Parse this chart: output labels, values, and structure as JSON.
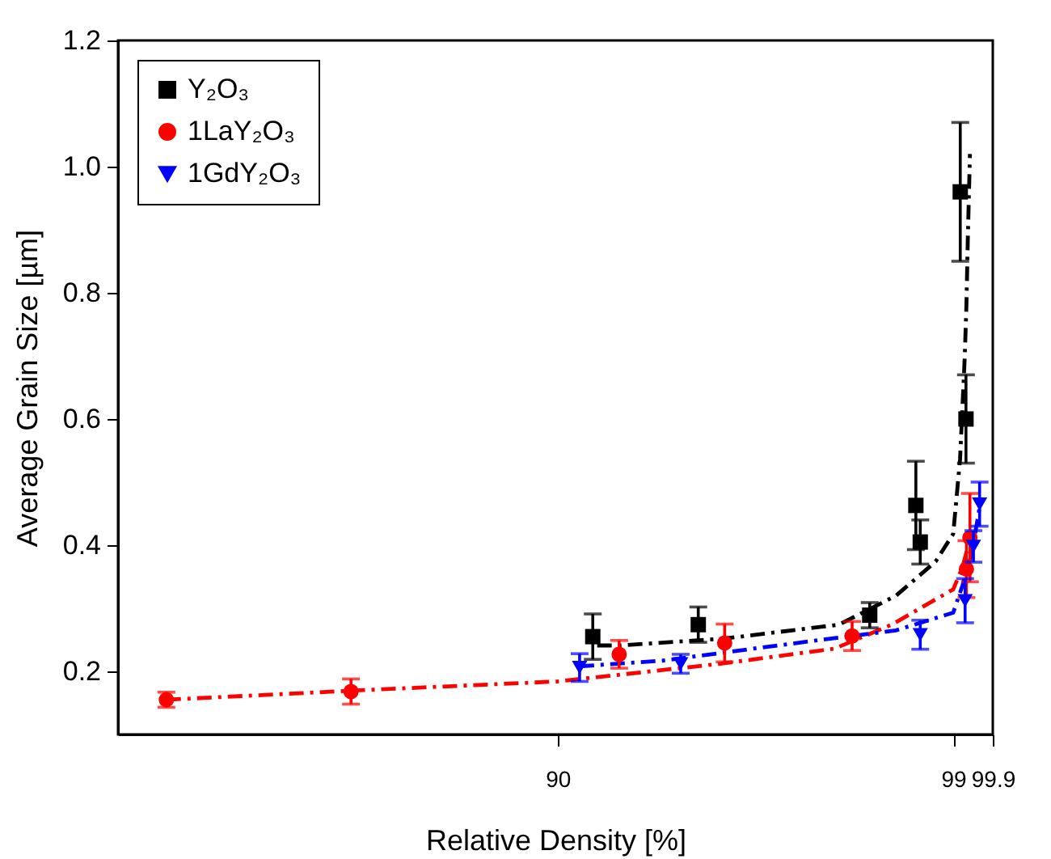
{
  "chart_data": {
    "type": "scatter",
    "xlabel": "Relative Density [%]",
    "ylabel": "Average Grain Size [µm]",
    "xlim": [
      80,
      99.9
    ],
    "xticks": [
      90,
      99,
      99.9
    ],
    "ylim": [
      0.1,
      1.2
    ],
    "yticks": [
      0.2,
      0.4,
      {
        "value": 0.6,
        "label": "0.6"
      },
      0.8,
      {
        "value": 1.0,
        "label": "1.0"
      },
      1.2
    ],
    "grid": false,
    "legend": "top left",
    "series": [
      {
        "name": "Y₂O₃",
        "marker": "square",
        "color": "#000000",
        "x": [
          90.8,
          93.2,
          97.1,
          98.15,
          98.25,
          99.16,
          99.29
        ],
        "values": [
          0.255,
          0.274,
          0.289,
          0.463,
          0.405,
          0.96,
          0.6
        ],
        "errors": [
          0.036,
          0.028,
          0.02,
          0.07,
          0.035,
          0.11,
          0.07
        ]
      },
      {
        "name": "1LaY₂O₃",
        "marker": "circle",
        "color": "#ff0000",
        "x": [
          81.1,
          85.3,
          91.4,
          93.8,
          96.7,
          99.3,
          99.38
        ],
        "values": [
          0.155,
          0.168,
          0.227,
          0.245,
          0.256,
          0.362,
          0.412
        ],
        "errors": [
          0.012,
          0.02,
          0.022,
          0.03,
          0.023,
          0.045,
          0.07
        ]
      },
      {
        "name": "1GdY₂O₃",
        "marker": "triangle",
        "color": "#0000ff",
        "x": [
          90.5,
          92.8,
          98.25,
          99.27,
          99.46,
          99.6
        ],
        "values": [
          0.206,
          0.212,
          0.258,
          0.312,
          0.398,
          0.465
        ],
        "errors": [
          0.022,
          0.015,
          0.023,
          0.035,
          0.025,
          0.035
        ]
      },
      {
        "type": "line",
        "line_style": "dashed",
        "marker": "none",
        "color": "#000000",
        "x": [
          90.9,
          91.4,
          93.8,
          96.4,
          97.7,
          98.6,
          99.0,
          99.155,
          99.26,
          99.3,
          99.33,
          99.38
        ],
        "values": [
          0.241,
          0.241,
          0.252,
          0.274,
          0.32,
          0.374,
          0.418,
          0.536,
          0.695,
          0.78,
          0.88,
          1.02
        ]
      },
      {
        "type": "line",
        "line_style": "dashed",
        "marker": "none",
        "color": "#ff0000",
        "x": [
          81.1,
          85.5,
          90,
          93.7,
          96.3,
          97.6,
          99.0,
          99.21,
          99.38
        ],
        "values": [
          0.155,
          0.17,
          0.184,
          0.212,
          0.236,
          0.274,
          0.33,
          0.365,
          0.41
        ]
      },
      {
        "type": "line",
        "line_style": "dashed",
        "marker": "none",
        "color": "#0000ff",
        "x": [
          90.5,
          92.4,
          95,
          97.7,
          99.0,
          99.21,
          99.43,
          99.52,
          99.6
        ],
        "values": [
          0.208,
          0.217,
          0.241,
          0.265,
          0.293,
          0.336,
          0.389,
          0.427,
          0.46
        ]
      }
    ]
  }
}
